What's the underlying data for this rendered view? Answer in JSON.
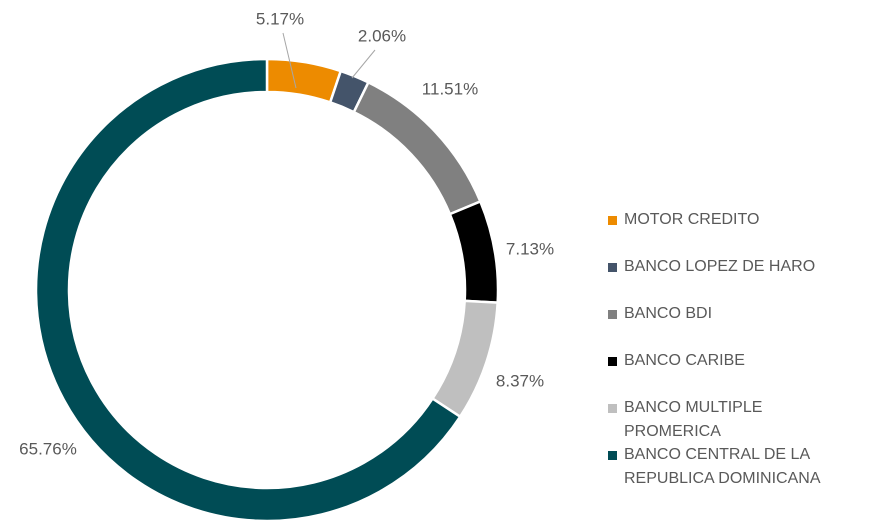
{
  "chart_data": {
    "type": "donut",
    "categories": [
      "MOTOR CREDITO",
      "BANCO LOPEZ DE HARO",
      "BANCO BDI",
      "BANCO CARIBE",
      "BANCO MULTIPLE PROMERICA",
      "BANCO CENTRAL DE LA REPUBLICA DOMINICANA"
    ],
    "values": [
      5.17,
      2.06,
      11.51,
      7.13,
      8.37,
      65.76
    ],
    "value_labels": [
      "5.17%",
      "2.06%",
      "11.51%",
      "7.13%",
      "8.37%",
      "65.76%"
    ],
    "colors": [
      "#ed8b00",
      "#44546a",
      "#808080",
      "#000000",
      "#bfbfbf",
      "#004c55"
    ],
    "legend": "right"
  }
}
